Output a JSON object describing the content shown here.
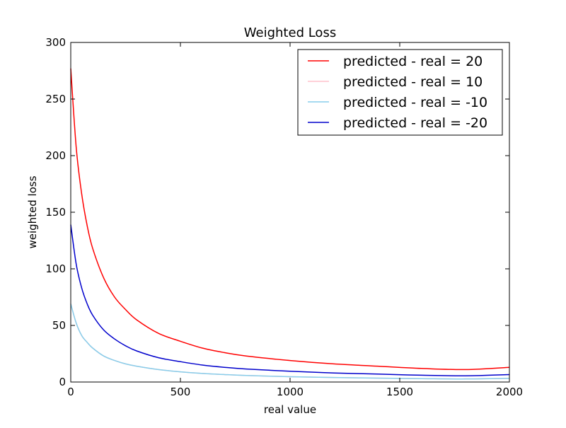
{
  "chart_data": {
    "type": "line",
    "title": "Weighted Loss",
    "xlabel": "real value",
    "ylabel": "weighted loss",
    "xlim": [
      0,
      2000
    ],
    "ylim": [
      0,
      300
    ],
    "xticks": [
      0,
      500,
      1000,
      1500,
      2000
    ],
    "yticks": [
      0,
      50,
      100,
      150,
      200,
      250,
      300
    ],
    "xtick_labels": [
      "0",
      "500",
      "1000",
      "1500",
      "2000"
    ],
    "ytick_labels": [
      "0",
      "50",
      "100",
      "150",
      "200",
      "250",
      "300"
    ],
    "grid": false,
    "legend_position": "top-right",
    "series": [
      {
        "name": "predicted - real = 20",
        "color": "#ff0000",
        "x": [
          0,
          25,
          50,
          75,
          100,
          150,
          200,
          250,
          300,
          400,
          500,
          600,
          700,
          800,
          1000,
          1200,
          1400,
          1600,
          1800,
          2000
        ],
        "y": [
          277,
          207,
          166,
          138,
          118,
          92,
          75,
          64,
          55,
          43,
          36,
          30,
          26,
          23,
          19,
          16,
          14,
          12,
          11,
          13
        ]
      },
      {
        "name": "predicted - real = 10",
        "color": "#ffc0cb",
        "x": [
          0,
          25,
          50,
          75,
          100,
          150,
          200,
          250,
          300,
          400,
          500,
          600,
          700,
          800,
          1000,
          1200,
          1400,
          1600,
          1800,
          2000
        ],
        "y": [
          69,
          52,
          41,
          35,
          30,
          23,
          19,
          16,
          14,
          11,
          9,
          7.6,
          6.6,
          5.8,
          4.7,
          4,
          3.4,
          3,
          2.7,
          3.3
        ]
      },
      {
        "name": "predicted - real = -10",
        "color": "#87ceeb",
        "x": [
          0,
          25,
          50,
          75,
          100,
          150,
          200,
          250,
          300,
          400,
          500,
          600,
          700,
          800,
          1000,
          1200,
          1400,
          1600,
          1800,
          2000
        ],
        "y": [
          69,
          52,
          41,
          35,
          30,
          23,
          19,
          16,
          14,
          11,
          9,
          7.6,
          6.6,
          5.8,
          4.7,
          4,
          3.4,
          3,
          2.7,
          3.3
        ]
      },
      {
        "name": "predicted - real = -20",
        "color": "#0000cc",
        "x": [
          0,
          25,
          50,
          75,
          100,
          150,
          200,
          250,
          300,
          400,
          500,
          600,
          700,
          800,
          1000,
          1200,
          1400,
          1600,
          1800,
          2000
        ],
        "y": [
          139,
          104,
          83,
          69,
          59,
          46,
          38,
          32,
          27.5,
          21.5,
          18,
          15,
          13,
          11.5,
          9.5,
          8,
          7,
          6,
          5.5,
          6.6
        ]
      }
    ]
  }
}
